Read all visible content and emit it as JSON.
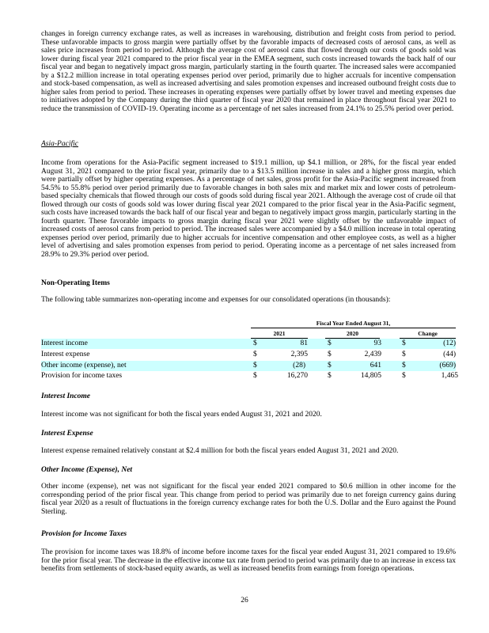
{
  "paragraphs": {
    "emea_cont": "changes in foreign currency exchange rates, as well as increases in warehousing, distribution and freight costs from period to period. These unfavorable impacts to gross margin were partially offset by the favorable impacts of decreased costs of aerosol cans, as well as sales price increases from period to period. Although the average cost of aerosol cans that flowed through our costs of goods sold was lower during fiscal year 2021 compared to the prior fiscal year in the EMEA segment, such costs increased towards the back half of our fiscal year and began to negatively impact gross margin, particularly starting in the fourth quarter. The increased sales were accompanied by a $12.2 million increase in total operating expenses period over period, primarily due to higher accruals for incentive compensation and stock-based compensation, as well as increased advertising and sales promotion expenses and increased outbound freight costs due to higher sales from period to period. These increases in operating expenses were partially offset by lower travel and meeting expenses due to initiatives adopted by the Company during the third quarter of fiscal year 2020 that remained in place throughout fiscal year 2021 to reduce the transmission of COVID-19. Operating income as a percentage of net sales increased from 24.1% to 25.5% period over period.",
    "asia_heading": "Asia-Pacific",
    "asia": "Income from operations for the Asia-Pacific segment increased to $19.1 million, up $4.1 million, or 28%, for the fiscal year ended August 31, 2021 compared to the prior fiscal year, primarily due to a $13.5 million increase in sales and a higher gross margin, which were partially offset by higher operating expenses. As a percentage of net sales, gross profit for the Asia-Pacific segment increased from 54.5% to 55.8% period over period primarily due to favorable changes in both sales mix and market mix and lower costs of petroleum-based specialty chemicals that flowed through our costs of goods sold during fiscal year 2021. Although the average cost of crude oil that flowed through our costs of goods sold was lower during fiscal year 2021 compared to the prior fiscal year in the Asia-Pacific segment, such costs have increased towards the back half of our fiscal year and began to negatively impact gross margin, particularly starting in the fourth quarter. These favorable impacts to gross margin during fiscal year 2021 were slightly offset by the unfavorable impact of increased costs of aerosol cans from period to period. The increased sales were accompanied by a $4.0 million increase in total operating expenses period over period, primarily due to higher accruals for incentive compensation and other employee costs, as well as a higher level of advertising and sales promotion expenses from period to period. Operating income as a percentage of net sales increased from 28.9% to 29.3% period over period.",
    "nonop_heading": "Non-Operating Items",
    "nonop_intro": "The following table summarizes non-operating income and expenses for our consolidated operations (in thousands):",
    "ii_heading": "Interest Income",
    "ii": "Interest income was not significant for both the fiscal years ended August 31, 2021 and 2020.",
    "ie_heading": "Interest Expense",
    "ie": "Interest expense remained relatively constant at $2.4 million for both the fiscal years ended August 31, 2021 and 2020.",
    "oi_heading": "Other Income (Expense), Net",
    "oi": "Other income (expense), net was not significant for the fiscal year ended 2021 compared to $0.6 million in other income for the corresponding period of the prior fiscal year. This change from period to period was primarily due to net foreign currency gains during fiscal year 2020 as a result of fluctuations in the foreign currency exchange rates for both the U.S. Dollar and the Euro against the Pound Sterling.",
    "pit_heading": "Provision for Income Taxes",
    "pit": "The provision for income taxes was 18.8% of income before income taxes for the fiscal year ended August 31, 2021 compared to 19.6% for the prior fiscal year. The decrease in the effective income tax rate from period to period was primarily due to an increase in excess tax benefits from settlements of stock-based equity awards, as well as increased benefits from earnings from foreign operations."
  },
  "table": {
    "group_header": "Fiscal Year Ended August 31,",
    "columns": [
      "2021",
      "2020",
      "Change"
    ],
    "highlight_color": "#ccffff",
    "rows": [
      {
        "label": "Interest income",
        "cur": [
          "$",
          "$",
          "$"
        ],
        "values": [
          "81",
          "93",
          "(12)"
        ]
      },
      {
        "label": "Interest expense",
        "cur": [
          "$",
          "$",
          "$"
        ],
        "values": [
          "2,395",
          "2,439",
          "(44)"
        ]
      },
      {
        "label": "Other income (expense), net",
        "cur": [
          "$",
          "$",
          "$"
        ],
        "values": [
          "(28)",
          "641",
          "(669)"
        ]
      },
      {
        "label": "Provision for income taxes",
        "cur": [
          "$",
          "$",
          "$"
        ],
        "values": [
          "16,270",
          "14,805",
          "1,465"
        ]
      }
    ]
  },
  "page_number": "26"
}
